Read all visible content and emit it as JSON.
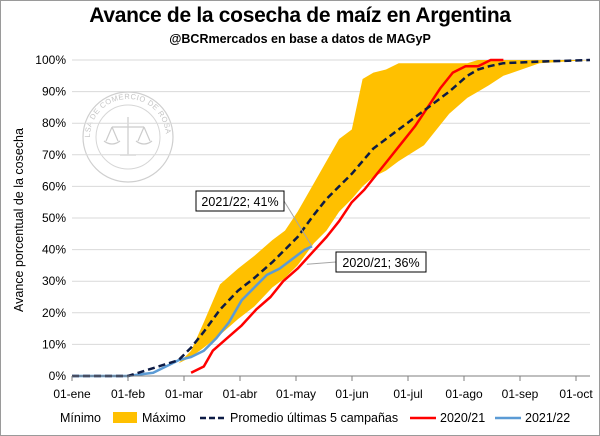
{
  "title": "Avance de la cosecha de maíz en Argentina",
  "subtitle": "@BCRmercados  en base a datos de MAGyP",
  "seal_text": "BOLSA DE COMERCIO DE ROSARIO",
  "colors": {
    "max_band": "#FFC000",
    "promedio": "#0D1B45",
    "y2020": "#FF0000",
    "y2021": "#5B9BD5",
    "grid": "#D9D9D9"
  },
  "chart_data": {
    "type": "area",
    "ylabel": "Avance porcentual de la cosecha",
    "xlabel": "",
    "x_ticks": [
      "01-ene",
      "01-feb",
      "01-mar",
      "01-abr",
      "01-may",
      "01-jun",
      "01-jul",
      "01-ago",
      "01-sep",
      "01-oct"
    ],
    "y_ticks": [
      "0%",
      "10%",
      "20%",
      "30%",
      "40%",
      "50%",
      "60%",
      "70%",
      "80%",
      "90%",
      "100%"
    ],
    "xlim_day_of_year": [
      1,
      288
    ],
    "ylim": [
      0,
      100
    ],
    "grid": "horizontal",
    "legend_position": "bottom",
    "legend": [
      "Mínimo",
      "Máximo",
      "Promedio últimas 5 campañas",
      "2020/21",
      "2021/22"
    ],
    "series": [
      {
        "name": "Máximo",
        "role": "upper_band",
        "x": [
          1,
          32,
          60,
          67,
          74,
          83,
          93,
          102,
          112,
          119,
          126,
          135,
          142,
          149,
          156,
          162,
          168,
          175,
          182,
          196,
          210,
          220,
          226,
          232,
          240,
          260,
          288
        ],
        "y": [
          0,
          0,
          4,
          8,
          17,
          29,
          34,
          38,
          43,
          46,
          52,
          61,
          68,
          75,
          78,
          94,
          96,
          97,
          99,
          99,
          99,
          99,
          100,
          100,
          100,
          100,
          100
        ]
      },
      {
        "name": "Mínimo",
        "role": "lower_band",
        "x": [
          1,
          32,
          60,
          67,
          74,
          83,
          93,
          102,
          112,
          119,
          126,
          135,
          142,
          149,
          156,
          162,
          168,
          175,
          182,
          196,
          210,
          220,
          226,
          232,
          240,
          260,
          288
        ],
        "y": [
          0,
          0,
          4,
          6,
          9,
          13,
          18,
          22,
          28,
          31,
          35,
          42,
          46,
          52,
          56,
          60,
          63,
          65,
          68,
          73,
          83,
          88,
          90,
          92,
          95,
          99,
          100
        ]
      },
      {
        "name": "Promedio últimas 5 campañas",
        "x": [
          1,
          32,
          60,
          67,
          74,
          83,
          93,
          102,
          112,
          119,
          126,
          135,
          142,
          149,
          156,
          162,
          168,
          175,
          182,
          196,
          210,
          220,
          226,
          232,
          240,
          260,
          288
        ],
        "y": [
          0,
          0,
          5,
          9,
          14,
          21,
          27,
          31,
          36,
          40,
          44,
          51,
          56,
          60,
          64,
          68,
          72,
          75,
          78,
          84,
          90,
          95,
          97,
          98,
          99,
          99.5,
          100
        ]
      },
      {
        "name": "2020/21",
        "x": [
          67,
          74,
          79,
          87,
          95,
          103,
          111,
          118,
          126,
          134,
          142,
          149,
          156,
          163,
          170,
          177,
          184,
          191,
          198,
          205,
          212,
          219,
          226,
          233,
          240
        ],
        "y": [
          1,
          3,
          8,
          12,
          16,
          21,
          25,
          30,
          34,
          39,
          44,
          49,
          55,
          59,
          64,
          69,
          74,
          79,
          85,
          91,
          96,
          98,
          98,
          100,
          100
        ]
      },
      {
        "name": "2021/22",
        "x": [
          1,
          32,
          46,
          53,
          60,
          67,
          74,
          81,
          88,
          95,
          102,
          109,
          116,
          123,
          130,
          134
        ],
        "y": [
          0,
          0,
          1,
          3,
          5,
          6,
          8,
          12,
          17,
          24,
          28,
          32,
          34,
          37,
          40,
          41
        ]
      }
    ],
    "annotations": [
      {
        "text": "2021/22; 41%",
        "series": "2021/22",
        "x": 134,
        "y": 41
      },
      {
        "text": "2020/21; 36%",
        "series": "2020/21",
        "x": 130,
        "y": 36
      }
    ]
  }
}
